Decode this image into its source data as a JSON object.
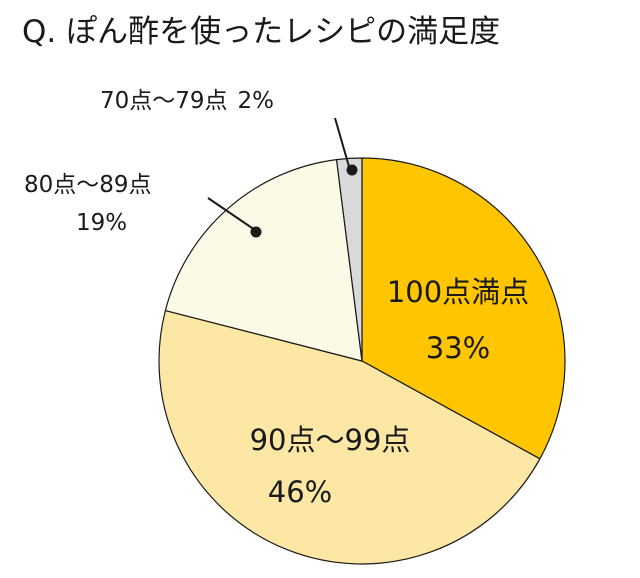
{
  "chart_data": {
    "type": "pie",
    "title": "Q. ぽん酢を使ったレシピの満足度",
    "slices": [
      {
        "label": "100点満点",
        "value_label": "33%",
        "value": 33,
        "color": "#FFC600"
      },
      {
        "label": "90点～99点",
        "value_label": "46%",
        "value": 46,
        "color": "#FCE8A4"
      },
      {
        "label": "80点～89点",
        "value_label": "19%",
        "value": 19,
        "color": "#FDF9E7"
      },
      {
        "label": "70点～79点",
        "value_label": "2%",
        "value": 2,
        "color": "#D9D9D9"
      }
    ],
    "start_angle_deg": 0,
    "direction": "clockwise",
    "edge_color": "#1a1a1a"
  }
}
